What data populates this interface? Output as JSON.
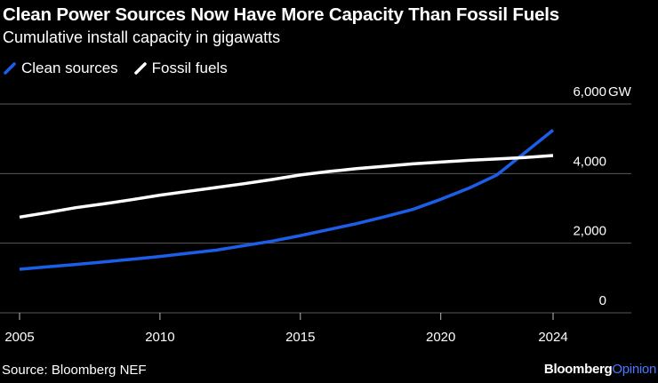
{
  "title": "Clean Power Sources Now Have More Capacity Than Fossil Fuels",
  "subtitle": "Cumulative install capacity in gigawatts",
  "source": "Source: Bloomberg NEF",
  "brand": {
    "part1": "Bloomberg",
    "part2": "Opinion"
  },
  "chart_data": {
    "type": "line",
    "title": "Clean Power Sources Now Have More Capacity Than Fossil Fuels",
    "subtitle": "Cumulative install capacity in gigawatts",
    "xlabel": "",
    "ylabel": "",
    "y_unit": "GW",
    "xlim": [
      2005,
      2027
    ],
    "ylim": [
      0,
      6000
    ],
    "x_ticks": [
      2005,
      2010,
      2015,
      2020,
      2024
    ],
    "y_ticks": [
      0,
      2000,
      4000,
      6000
    ],
    "y_tick_labels": [
      "0",
      "2,000",
      "4,000",
      "6,000"
    ],
    "grid": true,
    "legend_position": "top-left",
    "x": [
      2005,
      2006,
      2007,
      2008,
      2009,
      2010,
      2011,
      2012,
      2013,
      2014,
      2015,
      2016,
      2017,
      2018,
      2019,
      2020,
      2021,
      2022,
      2023,
      2024
    ],
    "series": [
      {
        "name": "Clean sources",
        "color": "#1d5ee8",
        "values": [
          1250,
          1320,
          1390,
          1460,
          1540,
          1620,
          1710,
          1800,
          1930,
          2060,
          2220,
          2390,
          2560,
          2760,
          2970,
          3260,
          3580,
          3960,
          4600,
          5250
        ]
      },
      {
        "name": "Fossil fuels",
        "color": "#ffffff",
        "values": [
          2750,
          2880,
          3020,
          3130,
          3250,
          3380,
          3490,
          3600,
          3710,
          3830,
          3960,
          4060,
          4140,
          4210,
          4280,
          4330,
          4380,
          4420,
          4460,
          4520
        ]
      }
    ]
  }
}
